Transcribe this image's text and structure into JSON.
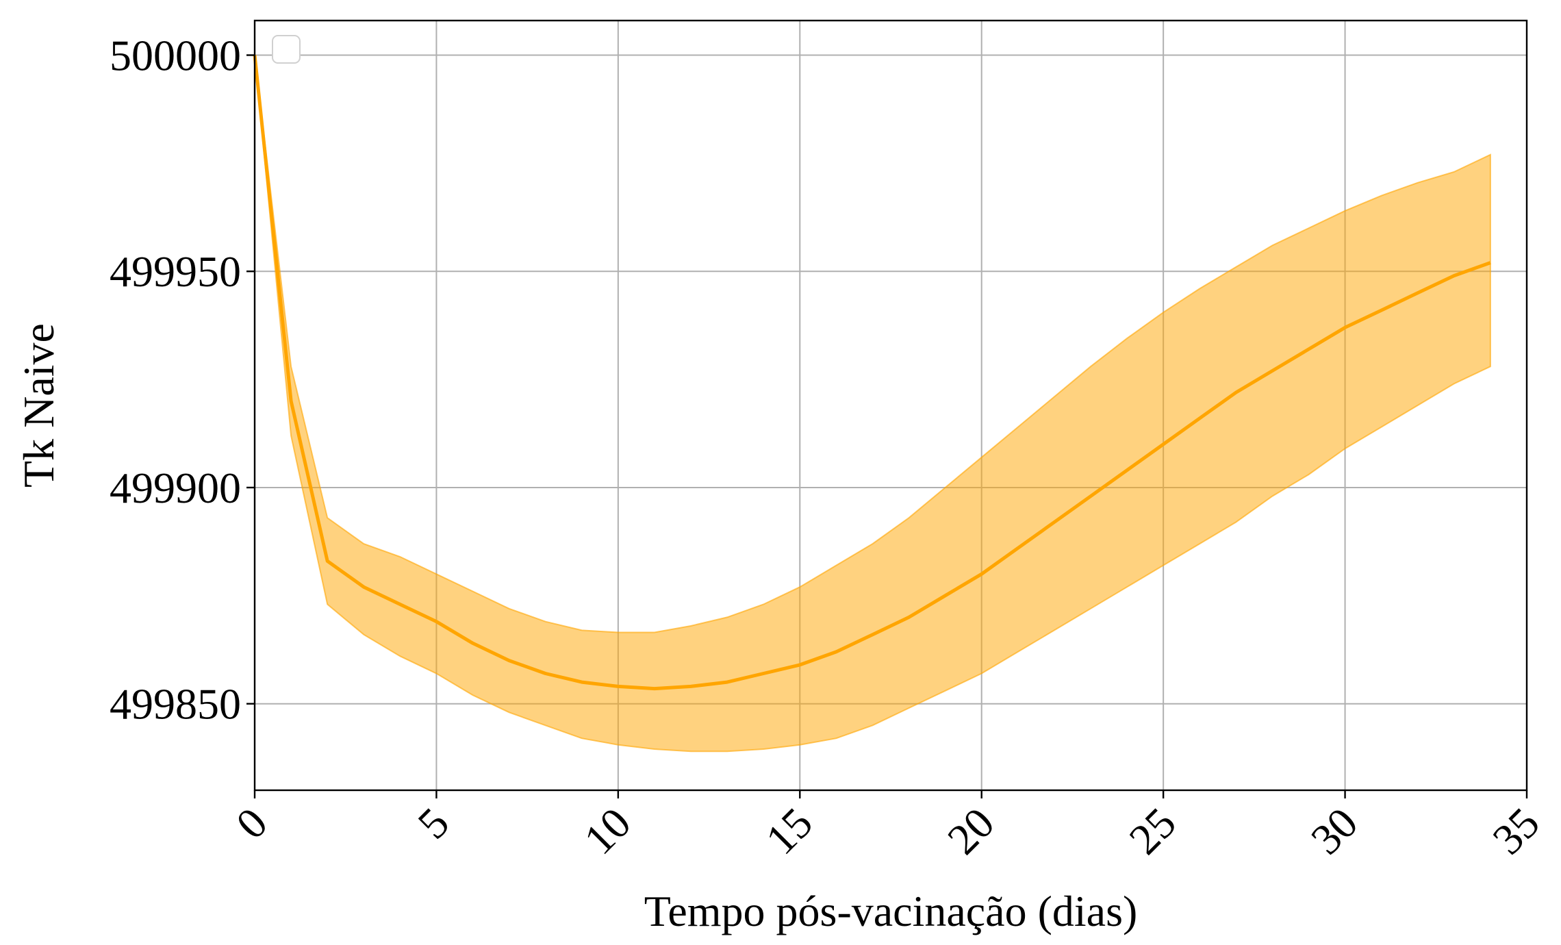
{
  "chart_data": {
    "type": "line",
    "title": "",
    "xlabel": "Tempo pós-vacinação (dias)",
    "ylabel": "Tk Naive",
    "xlim": [
      0,
      35
    ],
    "ylim": [
      499830,
      500008
    ],
    "x_ticks": [
      0,
      5,
      10,
      15,
      20,
      25,
      30,
      35
    ],
    "x_tick_labels": [
      "0",
      "5",
      "10",
      "15",
      "20",
      "25",
      "30",
      "35"
    ],
    "y_ticks": [
      499850,
      499900,
      499950,
      500000
    ],
    "y_tick_labels": [
      "499850",
      "499900",
      "499950",
      "500000"
    ],
    "grid": true,
    "legend": {
      "placement": "upper-left",
      "entries": []
    },
    "colors": {
      "line": "#ffa500",
      "band_fill": "#ffa500",
      "grid": "#b0b0b0",
      "axes": "#000000"
    },
    "series": [
      {
        "x": [
          0,
          1,
          2,
          3,
          4,
          5,
          6,
          7,
          8,
          9,
          10,
          11,
          12,
          13,
          14,
          15,
          16,
          17,
          18,
          19,
          20,
          21,
          22,
          23,
          24,
          25,
          26,
          27,
          28,
          29,
          30,
          31,
          32,
          33,
          34
        ],
        "mean": [
          500000,
          499920,
          499883,
          499877,
          499873,
          499869,
          499864,
          499860,
          499857,
          499855,
          499854,
          499853.5,
          499854,
          499855,
          499857,
          499859,
          499862,
          499866,
          499870,
          499875,
          499880,
          499886,
          499892,
          499898,
          499904,
          499910,
          499916,
          499922,
          499927,
          499932,
          499937,
          499941,
          499945,
          499949,
          499952
        ],
        "upper": [
          500000,
          499928,
          499893,
          499887,
          499884,
          499880,
          499876,
          499872,
          499869,
          499867,
          499866.5,
          499866.5,
          499868,
          499870,
          499873,
          499877,
          499882,
          499887,
          499893,
          499900,
          499907,
          499914,
          499921,
          499928,
          499934.5,
          499940.5,
          499946,
          499951,
          499956,
          499960,
          499964,
          499967.5,
          499970.5,
          499973,
          499977
        ],
        "lower": [
          500000,
          499912,
          499873,
          499866,
          499861,
          499857,
          499852,
          499848,
          499845,
          499842,
          499840.5,
          499839.5,
          499839,
          499839,
          499839.5,
          499840.5,
          499842,
          499845,
          499849,
          499853,
          499857,
          499862,
          499867,
          499872,
          499877,
          499882,
          499887,
          499892,
          499898,
          499903,
          499909,
          499914,
          499919,
          499924,
          499928
        ]
      }
    ]
  }
}
